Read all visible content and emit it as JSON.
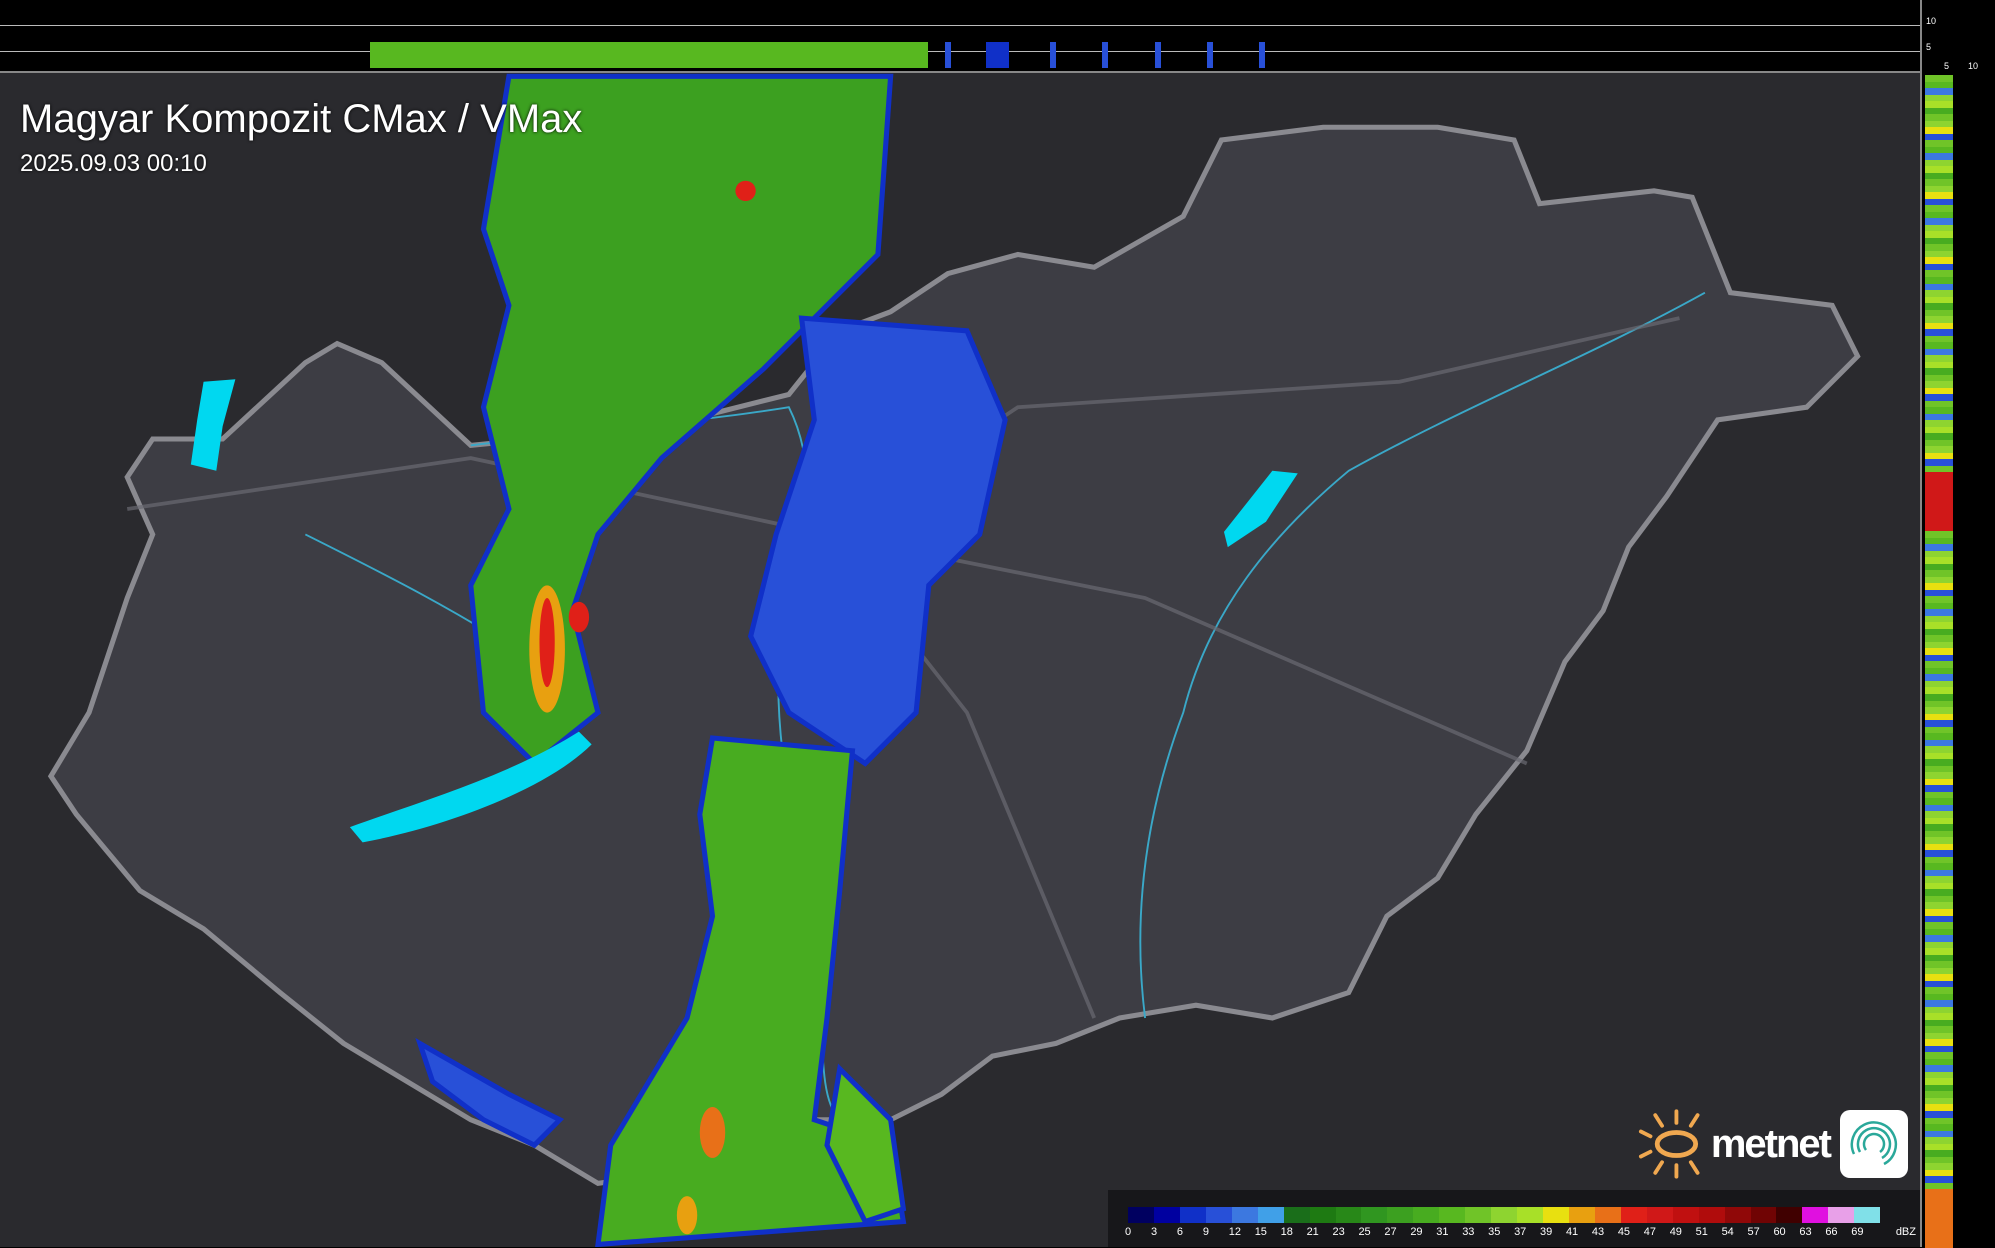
{
  "header": {
    "title": "Magyar Kompozit CMax / VMax",
    "timestamp": "2025.09.03 00:10"
  },
  "top_profile": {
    "scale_labels": [
      "10",
      "5"
    ]
  },
  "right_profile": {
    "scale_labels": [
      "5",
      "10"
    ]
  },
  "logo": {
    "text": "metnet",
    "icons": [
      "sun-icon",
      "swirl-app-icon"
    ],
    "sun_color": "#f0a850",
    "swirl_color": "#2aa89a"
  },
  "legend": {
    "unit": "dBZ",
    "labels": [
      "0",
      "3",
      "6",
      "9",
      "12",
      "15",
      "18",
      "21",
      "23",
      "25",
      "27",
      "29",
      "31",
      "33",
      "35",
      "37",
      "39",
      "41",
      "43",
      "45",
      "47",
      "49",
      "51",
      "54",
      "57",
      "60",
      "63",
      "66",
      "69"
    ],
    "colors": [
      "#000060",
      "#0000a0",
      "#1030c8",
      "#2850d8",
      "#3c78e0",
      "#40a0e8",
      "#1a6e1a",
      "#1e7a12",
      "#288818",
      "#309620",
      "#3ca020",
      "#48ac20",
      "#58b820",
      "#70c428",
      "#8ed430",
      "#a8e028",
      "#e8e010",
      "#e8a010",
      "#e87018",
      "#e02018",
      "#d01818",
      "#c01010",
      "#b00c0c",
      "#900808",
      "#700404",
      "#400000",
      "#e010e0",
      "#e8a0e8",
      "#80e0e8"
    ]
  },
  "colors": {
    "background": "#2a2a2e",
    "country": "#3d3d44",
    "border": "#8a8a90",
    "rivers": "#3aa8c8",
    "lakes": "#00d8f0"
  }
}
